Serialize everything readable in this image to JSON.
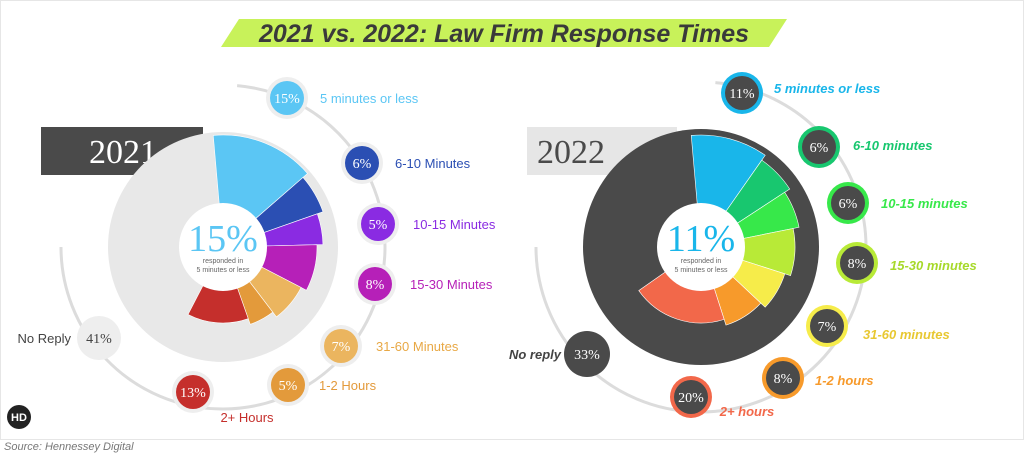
{
  "title": "2021 vs. 2022: Law Firm Response Times",
  "source": "Source: Hennessey Digital",
  "logo_text": "HD",
  "colors": {
    "title_highlight": "#c8f25a",
    "panel_2021": "#e8e8e8",
    "panel_2022": "#4a4a4a",
    "year_box_2021": "#4a4a4a",
    "year_box_2022": "#e6e6e6",
    "center_text_2021": "#5bc6f4",
    "center_text_2022": "#19b6ea"
  },
  "chart_data": [
    {
      "type": "pie",
      "year_label": "2021",
      "center_value": "15%",
      "center_sub_line1": "responded in",
      "center_sub_line2": "5 minutes or less",
      "slices": [
        {
          "label": "5 minutes or less",
          "value": 15,
          "display": "15%",
          "color": "#5bc6f4",
          "label_color": "#5bc6f4"
        },
        {
          "label": "6-10 Minutes",
          "value": 6,
          "display": "6%",
          "color": "#2b4fb3",
          "label_color": "#2b4fb3"
        },
        {
          "label": "10-15 Minutes",
          "value": 5,
          "display": "5%",
          "color": "#8a2be2",
          "label_color": "#8a2be2"
        },
        {
          "label": "15-30 Minutes",
          "value": 8,
          "display": "8%",
          "color": "#b620b8",
          "label_color": "#b620b8"
        },
        {
          "label": "31-60 Minutes",
          "value": 7,
          "display": "7%",
          "color": "#ebb55f",
          "label_color": "#e8a845"
        },
        {
          "label": "1-2 Hours",
          "value": 5,
          "display": "5%",
          "color": "#e39a3b",
          "label_color": "#e39a3b"
        },
        {
          "label": "2+ Hours",
          "value": 13,
          "display": "13%",
          "color": "#c52f2c",
          "label_color": "#c52f2c"
        },
        {
          "label": "No Reply",
          "value": 41,
          "display": "41%",
          "color": "#e8e8e8",
          "label_color": "#444444"
        }
      ]
    },
    {
      "type": "pie",
      "year_label": "2022",
      "center_value": "11%",
      "center_sub_line1": "responded in",
      "center_sub_line2": "5 minutes or less",
      "slices": [
        {
          "label": "5 minutes or less",
          "value": 11,
          "display": "11%",
          "color": "#19b6ea",
          "label_color": "#19b6ea"
        },
        {
          "label": "6-10 minutes",
          "value": 6,
          "display": "6%",
          "color": "#18c76f",
          "label_color": "#18c76f"
        },
        {
          "label": "10-15 minutes",
          "value": 6,
          "display": "6%",
          "color": "#37e84a",
          "label_color": "#37e84a"
        },
        {
          "label": "15-30 minutes",
          "value": 8,
          "display": "8%",
          "color": "#b8ea37",
          "label_color": "#a7d92a"
        },
        {
          "label": "31-60 minutes",
          "value": 7,
          "display": "7%",
          "color": "#f6ec4a",
          "label_color": "#e8c832"
        },
        {
          "label": "1-2 hours",
          "value": 8,
          "display": "8%",
          "color": "#f79a2b",
          "label_color": "#f79a2b"
        },
        {
          "label": "2+ hours",
          "value": 20,
          "display": "20%",
          "color": "#f2684a",
          "label_color": "#f2684a"
        },
        {
          "label": "No reply",
          "value": 33,
          "display": "33%",
          "color": "#4a4a4a",
          "label_color": "#444444"
        }
      ]
    }
  ]
}
